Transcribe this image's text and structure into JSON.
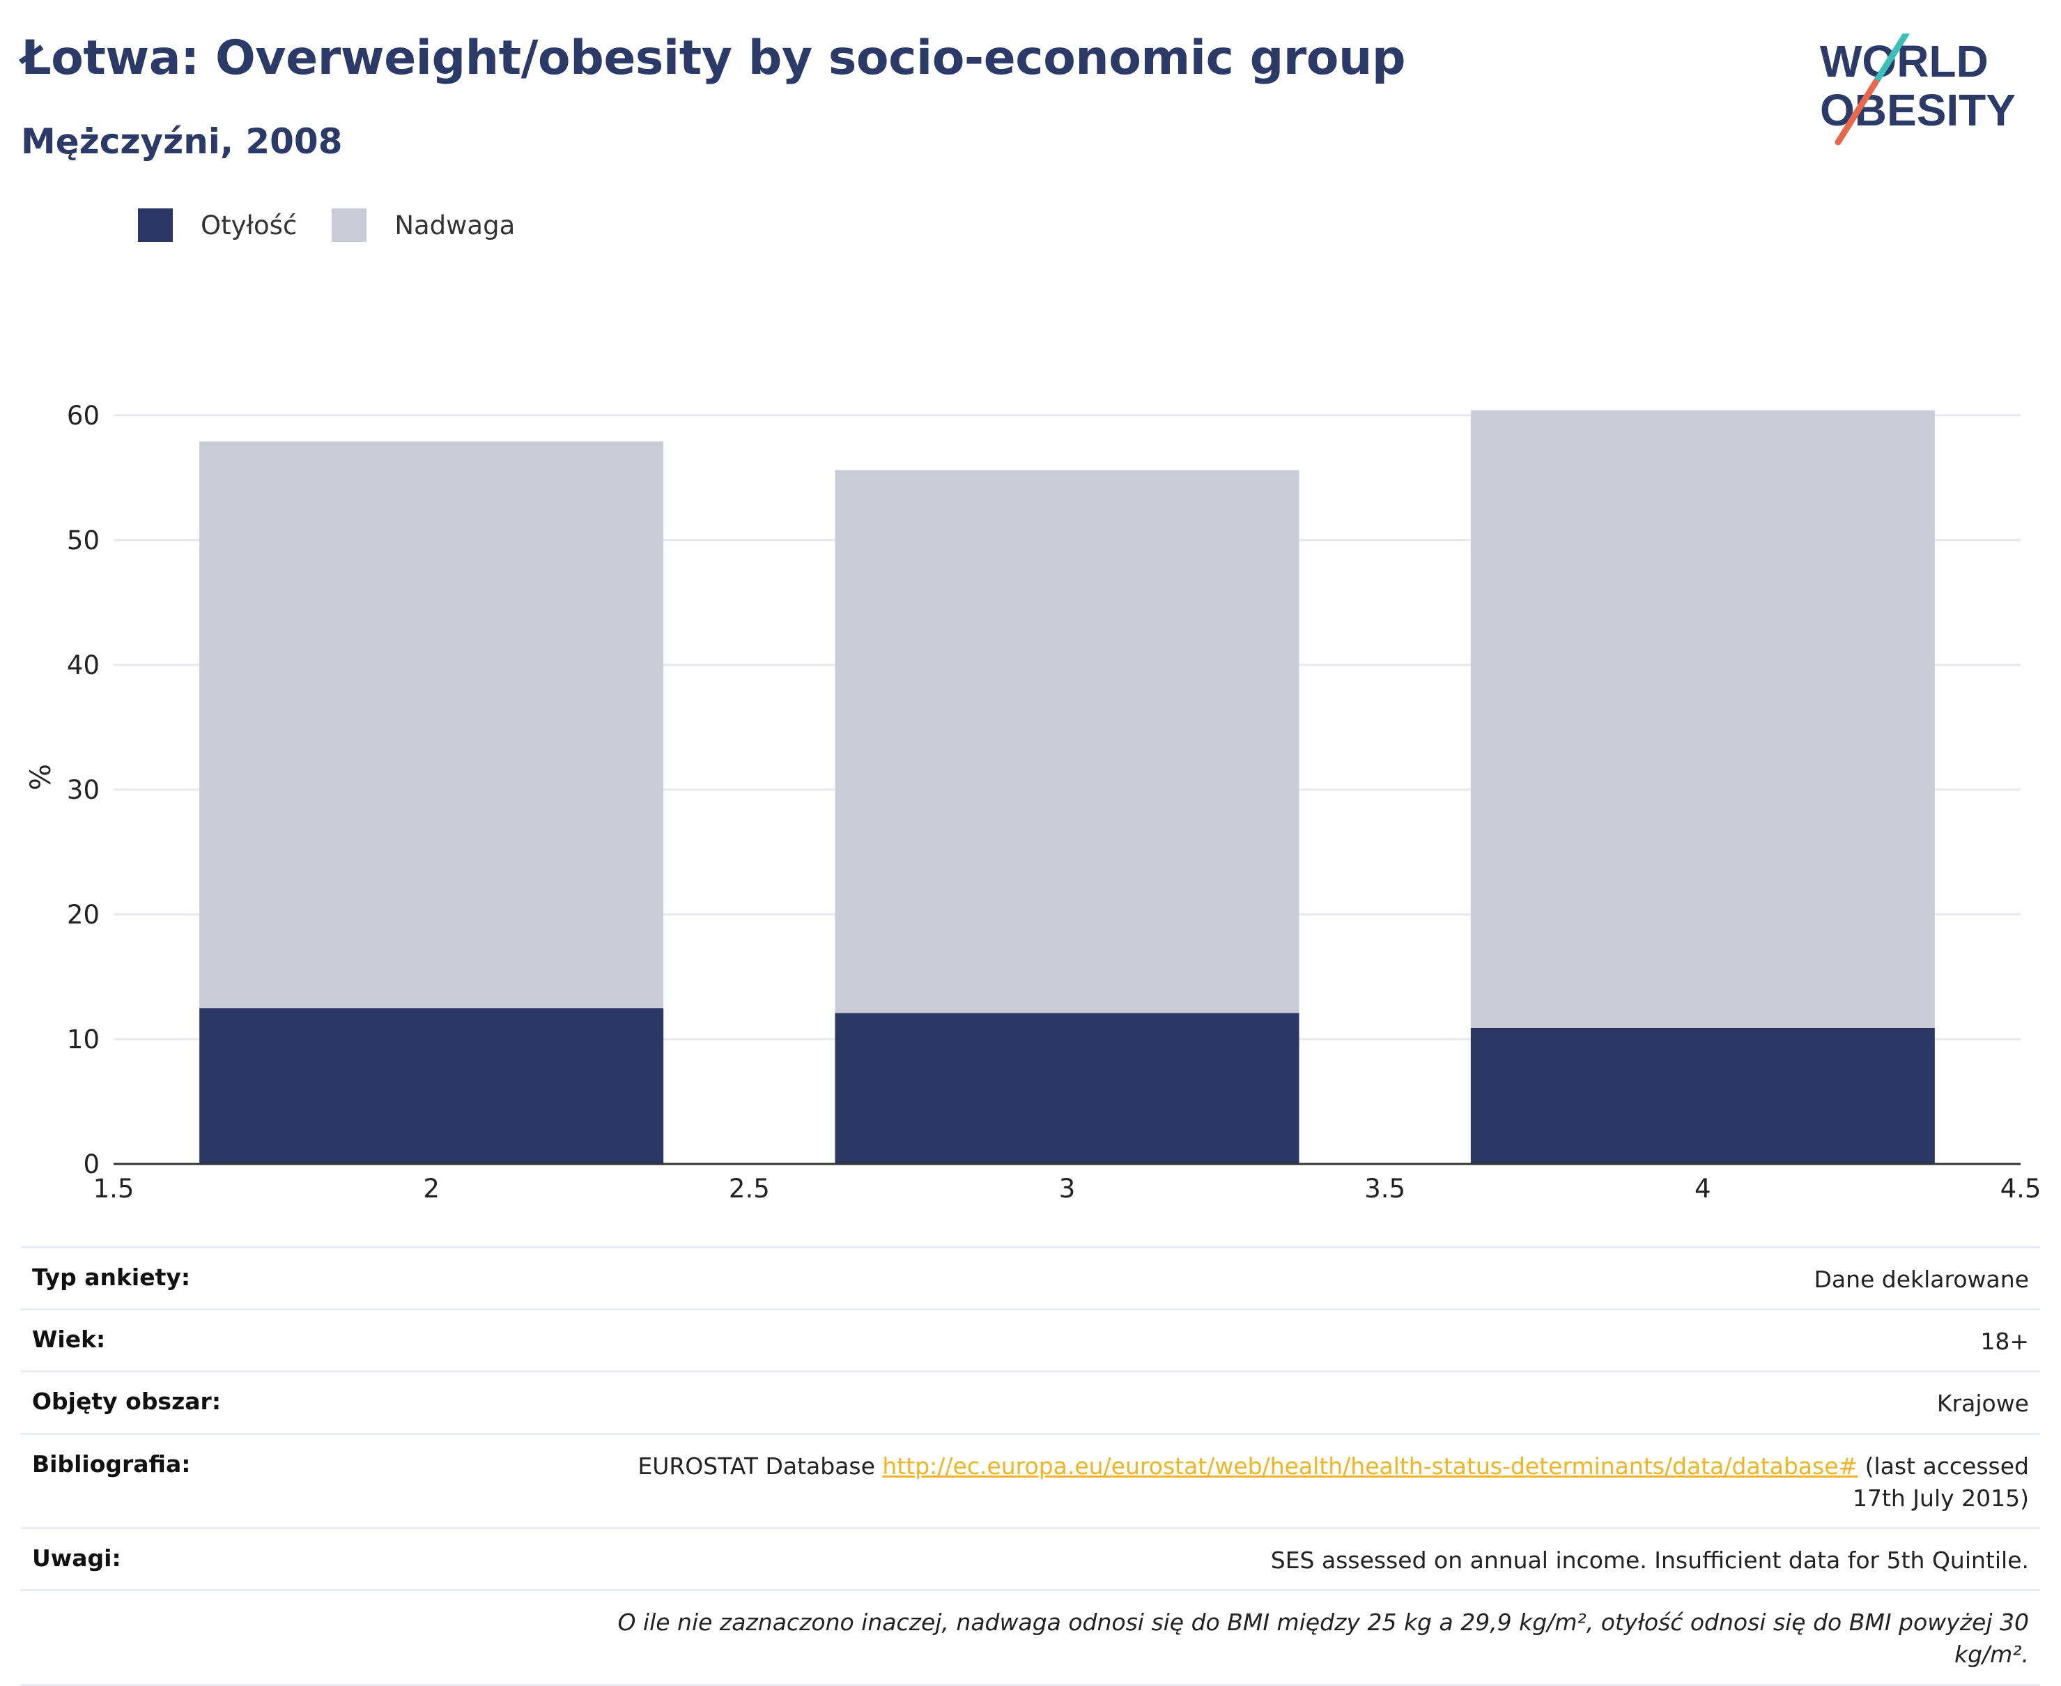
{
  "header": {
    "title": "Łotwa: Overweight/obesity by socio-economic group",
    "subtitle": "Mężczyźni, 2008"
  },
  "logo": {
    "line1": "WORLD",
    "line2": "OBESITY",
    "colors": {
      "text": "#2b3a67",
      "slash_top": "#3bbfb8",
      "slash_bottom": "#e8674f"
    }
  },
  "legend": [
    {
      "label": "Otyłość",
      "color": "#2b3765"
    },
    {
      "label": "Nadwaga",
      "color": "#c9ccd7"
    }
  ],
  "chart_data": {
    "type": "bar",
    "stacked": true,
    "x": [
      2,
      3,
      4
    ],
    "series": [
      {
        "name": "Otyłość",
        "color": "#2b3765",
        "values": [
          12.5,
          12.1,
          10.9
        ]
      },
      {
        "name": "Nadwaga",
        "color": "#c9ccd7",
        "values": [
          45.4,
          43.5,
          49.5
        ]
      }
    ],
    "xlim": [
      1.5,
      4.5
    ],
    "ylim": [
      0,
      62
    ],
    "x_ticks": [
      "1.5",
      "2",
      "2.5",
      "3",
      "3.5",
      "4",
      "4.5"
    ],
    "y_ticks": [
      "0",
      "10",
      "20",
      "30",
      "40",
      "50",
      "60"
    ],
    "xlabel": "",
    "ylabel": "%",
    "grid": true,
    "legend_position": "top-left"
  },
  "info": [
    {
      "label": "Typ ankiety:",
      "value": "Dane deklarowane"
    },
    {
      "label": "Wiek:",
      "value": "18+"
    },
    {
      "label": "Objęty obszar:",
      "value": "Krajowe"
    },
    {
      "label": "Bibliografia:",
      "value_prefix": "EUROSTAT Database ",
      "link": "http://ec.europa.eu/eurostat/web/health/health-status-determinants/data/database#",
      "value_suffix": " (last accessed 17th July 2015)"
    },
    {
      "label": "Uwagi:",
      "value": "SES assessed on annual income. Insufficient data for 5th Quintile."
    },
    {
      "label": "",
      "note": "O ile nie zaznaczono inaczej, nadwaga odnosi się do BMI między 25 kg a 29,9 kg/m², otyłość odnosi się do BMI powyżej 30 kg/m²."
    }
  ]
}
